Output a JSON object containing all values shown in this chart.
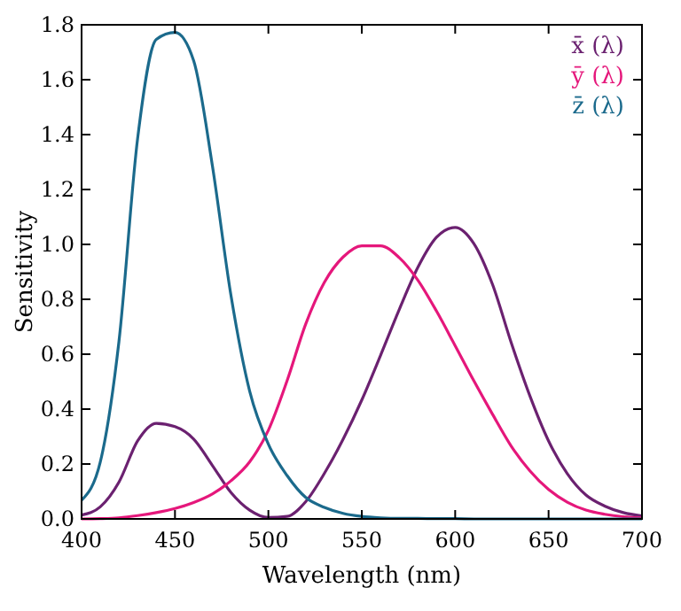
{
  "chart_data": {
    "type": "line",
    "xlabel": "Wavelength (nm)",
    "ylabel": "Sensitivity",
    "x": [
      400,
      410,
      420,
      430,
      440,
      450,
      460,
      470,
      480,
      490,
      500,
      510,
      520,
      530,
      540,
      550,
      560,
      570,
      580,
      590,
      600,
      610,
      620,
      630,
      640,
      650,
      660,
      670,
      680,
      690,
      700
    ],
    "series": [
      {
        "name": "x̄ (λ)",
        "color": "#6b2170",
        "values": [
          0.014,
          0.044,
          0.134,
          0.284,
          0.348,
          0.336,
          0.291,
          0.195,
          0.096,
          0.032,
          0.005,
          0.009,
          0.063,
          0.166,
          0.29,
          0.433,
          0.595,
          0.762,
          0.916,
          1.026,
          1.062,
          1.003,
          0.854,
          0.642,
          0.448,
          0.284,
          0.165,
          0.087,
          0.047,
          0.023,
          0.011
        ]
      },
      {
        "name": "ȳ (λ)",
        "color": "#e5177b",
        "values": [
          0.0,
          0.001,
          0.004,
          0.012,
          0.023,
          0.038,
          0.06,
          0.091,
          0.139,
          0.208,
          0.323,
          0.503,
          0.71,
          0.862,
          0.954,
          0.995,
          0.995,
          0.952,
          0.87,
          0.757,
          0.631,
          0.503,
          0.381,
          0.265,
          0.175,
          0.107,
          0.061,
          0.032,
          0.017,
          0.008,
          0.004
        ]
      },
      {
        "name": "z̄ (λ)",
        "color": "#1b6a8c",
        "values": [
          0.068,
          0.207,
          0.646,
          1.386,
          1.747,
          1.772,
          1.669,
          1.288,
          0.813,
          0.465,
          0.272,
          0.158,
          0.078,
          0.042,
          0.02,
          0.009,
          0.004,
          0.002,
          0.002,
          0.001,
          0.001,
          0.0,
          0.0,
          0.0,
          0.0,
          0.0,
          0.0,
          0.0,
          0.0,
          0.0,
          0.0
        ]
      }
    ],
    "xlim": [
      400,
      700
    ],
    "xticks": [
      400,
      450,
      500,
      550,
      600,
      650,
      700
    ],
    "ylim": [
      0,
      1.8
    ],
    "yticks": [
      {
        "value": 0,
        "label": "0.0"
      },
      {
        "value": 0.2,
        "label": "0.2"
      },
      {
        "value": 0.4,
        "label": "0.4"
      },
      {
        "value": 0.6,
        "label": "0.6"
      },
      {
        "value": 0.8,
        "label": "0.8"
      },
      {
        "value": 1.0,
        "label": "1.0"
      },
      {
        "value": 1.2,
        "label": "1.2"
      },
      {
        "value": 1.4,
        "label": "1.4"
      },
      {
        "value": 1.6,
        "label": "1.6"
      },
      {
        "value": 1.8,
        "label": "1.8"
      }
    ],
    "grid": false,
    "legend": "top right",
    "marker": "none",
    "line_style": "solid"
  }
}
